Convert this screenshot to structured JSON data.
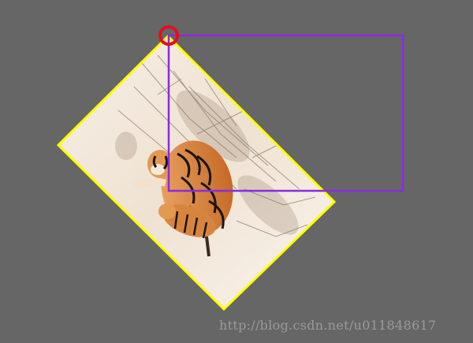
{
  "scene": {
    "background_color": "#666666",
    "rotated_image": {
      "content": "tiger-with-cub-in-snow-photo",
      "border_color": "#ffff00"
    },
    "bounding_rectangle": {
      "border_color": "#8a2be2"
    },
    "anchor_marker": {
      "shape": "circle",
      "color": "#e0101c"
    }
  },
  "watermark": {
    "text": "http://blog.csdn.net/u011848617",
    "color": "#9a9a9a"
  }
}
